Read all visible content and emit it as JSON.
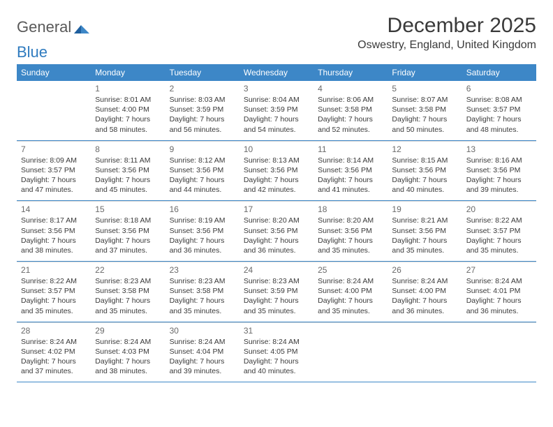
{
  "logo": {
    "word1": "General",
    "word2": "Blue"
  },
  "title": "December 2025",
  "location": "Oswestry, England, United Kingdom",
  "calendar": {
    "type": "table",
    "header_bg": "#3d87c7",
    "header_fg": "#ffffff",
    "row_divider_color": "#3d87c7",
    "cell_top_border_color": "#d9d9d9",
    "background_color": "#ffffff",
    "text_color": "#3a3a3a",
    "daynum_color": "#6a6a6a",
    "header_fontsize": 12,
    "daynum_fontsize": 12,
    "body_fontsize": 10.5,
    "title_fontsize": 30,
    "location_fontsize": 16,
    "columns": [
      "Sunday",
      "Monday",
      "Tuesday",
      "Wednesday",
      "Thursday",
      "Friday",
      "Saturday"
    ],
    "rows": [
      [
        null,
        {
          "n": "1",
          "sr": "8:01 AM",
          "ss": "4:00 PM",
          "dl": "7 hours and 58 minutes."
        },
        {
          "n": "2",
          "sr": "8:03 AM",
          "ss": "3:59 PM",
          "dl": "7 hours and 56 minutes."
        },
        {
          "n": "3",
          "sr": "8:04 AM",
          "ss": "3:59 PM",
          "dl": "7 hours and 54 minutes."
        },
        {
          "n": "4",
          "sr": "8:06 AM",
          "ss": "3:58 PM",
          "dl": "7 hours and 52 minutes."
        },
        {
          "n": "5",
          "sr": "8:07 AM",
          "ss": "3:58 PM",
          "dl": "7 hours and 50 minutes."
        },
        {
          "n": "6",
          "sr": "8:08 AM",
          "ss": "3:57 PM",
          "dl": "7 hours and 48 minutes."
        }
      ],
      [
        {
          "n": "7",
          "sr": "8:09 AM",
          "ss": "3:57 PM",
          "dl": "7 hours and 47 minutes."
        },
        {
          "n": "8",
          "sr": "8:11 AM",
          "ss": "3:56 PM",
          "dl": "7 hours and 45 minutes."
        },
        {
          "n": "9",
          "sr": "8:12 AM",
          "ss": "3:56 PM",
          "dl": "7 hours and 44 minutes."
        },
        {
          "n": "10",
          "sr": "8:13 AM",
          "ss": "3:56 PM",
          "dl": "7 hours and 42 minutes."
        },
        {
          "n": "11",
          "sr": "8:14 AM",
          "ss": "3:56 PM",
          "dl": "7 hours and 41 minutes."
        },
        {
          "n": "12",
          "sr": "8:15 AM",
          "ss": "3:56 PM",
          "dl": "7 hours and 40 minutes."
        },
        {
          "n": "13",
          "sr": "8:16 AM",
          "ss": "3:56 PM",
          "dl": "7 hours and 39 minutes."
        }
      ],
      [
        {
          "n": "14",
          "sr": "8:17 AM",
          "ss": "3:56 PM",
          "dl": "7 hours and 38 minutes."
        },
        {
          "n": "15",
          "sr": "8:18 AM",
          "ss": "3:56 PM",
          "dl": "7 hours and 37 minutes."
        },
        {
          "n": "16",
          "sr": "8:19 AM",
          "ss": "3:56 PM",
          "dl": "7 hours and 36 minutes."
        },
        {
          "n": "17",
          "sr": "8:20 AM",
          "ss": "3:56 PM",
          "dl": "7 hours and 36 minutes."
        },
        {
          "n": "18",
          "sr": "8:20 AM",
          "ss": "3:56 PM",
          "dl": "7 hours and 35 minutes."
        },
        {
          "n": "19",
          "sr": "8:21 AM",
          "ss": "3:56 PM",
          "dl": "7 hours and 35 minutes."
        },
        {
          "n": "20",
          "sr": "8:22 AM",
          "ss": "3:57 PM",
          "dl": "7 hours and 35 minutes."
        }
      ],
      [
        {
          "n": "21",
          "sr": "8:22 AM",
          "ss": "3:57 PM",
          "dl": "7 hours and 35 minutes."
        },
        {
          "n": "22",
          "sr": "8:23 AM",
          "ss": "3:58 PM",
          "dl": "7 hours and 35 minutes."
        },
        {
          "n": "23",
          "sr": "8:23 AM",
          "ss": "3:58 PM",
          "dl": "7 hours and 35 minutes."
        },
        {
          "n": "24",
          "sr": "8:23 AM",
          "ss": "3:59 PM",
          "dl": "7 hours and 35 minutes."
        },
        {
          "n": "25",
          "sr": "8:24 AM",
          "ss": "4:00 PM",
          "dl": "7 hours and 35 minutes."
        },
        {
          "n": "26",
          "sr": "8:24 AM",
          "ss": "4:00 PM",
          "dl": "7 hours and 36 minutes."
        },
        {
          "n": "27",
          "sr": "8:24 AM",
          "ss": "4:01 PM",
          "dl": "7 hours and 36 minutes."
        }
      ],
      [
        {
          "n": "28",
          "sr": "8:24 AM",
          "ss": "4:02 PM",
          "dl": "7 hours and 37 minutes."
        },
        {
          "n": "29",
          "sr": "8:24 AM",
          "ss": "4:03 PM",
          "dl": "7 hours and 38 minutes."
        },
        {
          "n": "30",
          "sr": "8:24 AM",
          "ss": "4:04 PM",
          "dl": "7 hours and 39 minutes."
        },
        {
          "n": "31",
          "sr": "8:24 AM",
          "ss": "4:05 PM",
          "dl": "7 hours and 40 minutes."
        },
        null,
        null,
        null
      ]
    ],
    "labels": {
      "sunrise": "Sunrise:",
      "sunset": "Sunset:",
      "daylight": "Daylight:"
    }
  }
}
